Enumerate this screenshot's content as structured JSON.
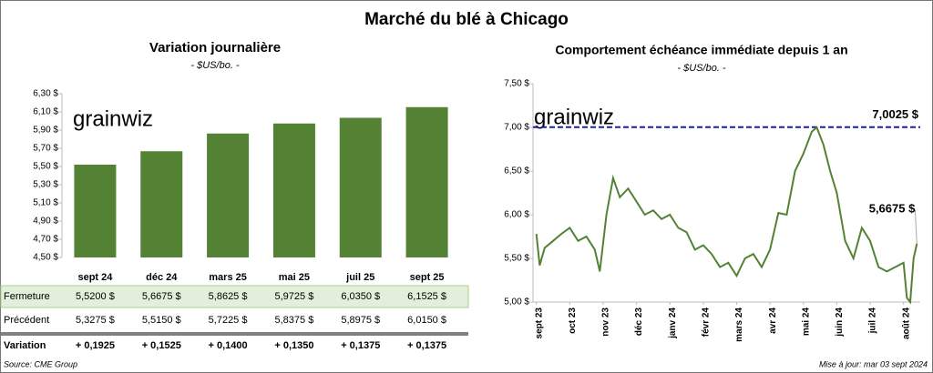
{
  "title": "Marché du blé à Chicago",
  "logo": "grainwiz",
  "source": "Source: CME Group",
  "updated": "Mise à jour: mar 03 sept 2024",
  "chart_data": [
    {
      "type": "bar",
      "title": "Variation journalière",
      "subtitle": "- $US/bo. -",
      "categories": [
        "sept 24",
        "déc 24",
        "mars 25",
        "mai 25",
        "juil 25",
        "sept 25"
      ],
      "values": [
        5.52,
        5.6675,
        5.8625,
        5.9725,
        6.035,
        6.1525
      ],
      "value_labels": [
        "5,5200  $",
        "5,6675  $",
        "5,8625  $",
        "5,9725  $",
        "6,0350  $",
        "6,1525  $"
      ],
      "color": "#548235",
      "ylim": [
        4.5,
        6.3
      ],
      "yticks": [
        {
          "value": 4.5,
          "label": "4,50 $"
        },
        {
          "value": 4.7,
          "label": "4,70 $"
        },
        {
          "value": 4.9,
          "label": "4,90 $"
        },
        {
          "value": 5.1,
          "label": "5,10 $"
        },
        {
          "value": 5.3,
          "label": "5,30 $"
        },
        {
          "value": 5.5,
          "label": "5,50 $"
        },
        {
          "value": 5.7,
          "label": "5,70 $"
        },
        {
          "value": 5.9,
          "label": "5,90 $"
        },
        {
          "value": 6.1,
          "label": "6,10 $"
        },
        {
          "value": 6.3,
          "label": "6,30 $"
        }
      ],
      "grid": false
    },
    {
      "type": "line",
      "title": "Comportement  échéance immédiate depuis 1 an",
      "subtitle": "- $US/bo. -",
      "x": [
        0,
        0.1,
        0.25,
        0.5,
        0.75,
        1,
        1.25,
        1.5,
        1.75,
        1.9,
        2.1,
        2.3,
        2.5,
        2.75,
        3,
        3.25,
        3.5,
        3.75,
        4,
        4.25,
        4.5,
        4.75,
        5,
        5.25,
        5.5,
        5.75,
        6,
        6.25,
        6.5,
        6.75,
        7,
        7.25,
        7.5,
        7.75,
        8,
        8.25,
        8.4,
        8.6,
        8.8,
        9,
        9.25,
        9.5,
        9.75,
        10,
        10.25,
        10.5,
        10.75,
        11,
        11.1,
        11.2,
        11.3,
        11.4
      ],
      "values": [
        5.78,
        5.42,
        5.62,
        5.7,
        5.78,
        5.85,
        5.7,
        5.75,
        5.6,
        5.35,
        6.0,
        6.42,
        6.2,
        6.3,
        6.15,
        6.0,
        6.05,
        5.95,
        6.0,
        5.85,
        5.8,
        5.6,
        5.65,
        5.55,
        5.4,
        5.45,
        5.3,
        5.5,
        5.55,
        5.4,
        5.6,
        6.02,
        6.0,
        6.5,
        6.7,
        6.95,
        7.0,
        6.8,
        6.5,
        6.25,
        5.7,
        5.5,
        5.85,
        5.7,
        5.4,
        5.35,
        5.4,
        5.45,
        5.05,
        5.0,
        5.5,
        5.6675
      ],
      "end_label": "5,6675 $",
      "reference": {
        "value": 7.0025,
        "label": "7,0025 $",
        "color": "#1f1fa8"
      },
      "color": "#548235",
      "xlim": [
        -0.1,
        11.5
      ],
      "xticks": [
        {
          "value": 0,
          "label": "sept 23"
        },
        {
          "value": 1,
          "label": "oct 23"
        },
        {
          "value": 2,
          "label": "nov 23"
        },
        {
          "value": 3,
          "label": "déc 23"
        },
        {
          "value": 4,
          "label": "janv 24"
        },
        {
          "value": 5,
          "label": "févr 24"
        },
        {
          "value": 6,
          "label": "mars 24"
        },
        {
          "value": 7,
          "label": "avr 24"
        },
        {
          "value": 8,
          "label": "mai 24"
        },
        {
          "value": 9,
          "label": "juin 24"
        },
        {
          "value": 10,
          "label": "juil 24"
        },
        {
          "value": 11,
          "label": "août 24"
        }
      ],
      "ylim": [
        5.0,
        7.5
      ],
      "yticks": [
        {
          "value": 5.0,
          "label": "5,00 $"
        },
        {
          "value": 5.5,
          "label": "5,50 $"
        },
        {
          "value": 6.0,
          "label": "6,00 $"
        },
        {
          "value": 6.5,
          "label": "6,50 $"
        },
        {
          "value": 7.0,
          "label": "7,00 $"
        },
        {
          "value": 7.5,
          "label": "7,50 $"
        }
      ],
      "grid": false
    }
  ],
  "table": {
    "close_label": "Fermeture",
    "rows": [
      {
        "label": "Précédent",
        "cells": [
          "5,3275  $",
          "5,5150  $",
          "5,7225  $",
          "5,8375  $",
          "5,8975  $",
          "6,0150  $"
        ]
      },
      {
        "label": "Variation",
        "cells": [
          "+ 0,1925",
          "+ 0,1525",
          "+ 0,1400",
          "+ 0,1350",
          "+ 0,1375",
          "+ 0,1375"
        ]
      }
    ]
  }
}
